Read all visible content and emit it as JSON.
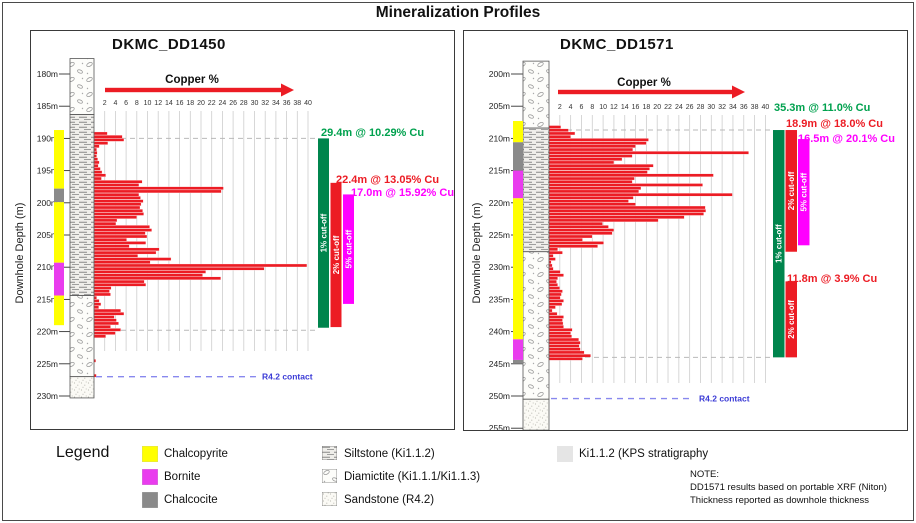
{
  "title": "Mineralization Profiles",
  "colors": {
    "bar_red": "#ec1c24",
    "chalcopyrite": "#ffff00",
    "bornite": "#e93cee",
    "chalcocite": "#8a8a8a",
    "cutoff_green": "#00854d",
    "cutoff_red": "#ec1c24",
    "cutoff_magenta": "#ff00ff",
    "text_green": "#00a14e",
    "text_red": "#ec1c24",
    "text_magenta": "#ff00ff",
    "contact_line": "#8888ee",
    "contact_text": "#3b3bd6",
    "strat_swatch": "#e5e5e5"
  },
  "chart_data": {
    "type": "bar",
    "orientation": "horizontal",
    "description": "Downhole copper grade profiles with lithology and sulphide mineral zones",
    "panels": [
      {
        "hole_id": "DKMC_DD1450",
        "x_axis": {
          "label": "Copper %",
          "min": 0,
          "max": 40,
          "ticks": [
            2,
            4,
            6,
            8,
            10,
            12,
            14,
            16,
            18,
            20,
            22,
            24,
            26,
            28,
            30,
            32,
            34,
            36,
            38,
            40
          ]
        },
        "depth_axis": {
          "label": "Downhole Depth (m)",
          "ticks": [
            "180m",
            "185m",
            "190m",
            "195m",
            "200m",
            "205m",
            "210m",
            "215m",
            "220m",
            "225m",
            "230m"
          ]
        },
        "bars": [
          [
            189,
            2.5
          ],
          [
            189.5,
            5.3
          ],
          [
            190,
            5.6
          ],
          [
            190.5,
            2.6
          ],
          [
            191,
            1
          ],
          [
            191.5,
            0.5
          ],
          [
            192,
            0.6
          ],
          [
            192.5,
            0.5
          ],
          [
            193,
            0.7
          ],
          [
            193.5,
            1
          ],
          [
            194,
            0.8
          ],
          [
            194.5,
            1.2
          ],
          [
            195,
            1.5
          ],
          [
            195.5,
            2.2
          ],
          [
            196,
            1.4
          ],
          [
            196.5,
            9
          ],
          [
            197,
            8.4
          ],
          [
            197.5,
            24.2
          ],
          [
            198,
            23.8
          ],
          [
            198.5,
            8.4
          ],
          [
            199,
            8.7
          ],
          [
            199.5,
            9.2
          ],
          [
            200,
            8.8
          ],
          [
            200.5,
            8.6
          ],
          [
            201,
            9.1
          ],
          [
            201.5,
            9.3
          ],
          [
            202,
            8
          ],
          [
            202.5,
            4.3
          ],
          [
            203,
            4.1
          ],
          [
            203.5,
            10.4
          ],
          [
            204,
            10.8
          ],
          [
            204.5,
            9.6
          ],
          [
            205,
            9.9
          ],
          [
            205.5,
            6.1
          ],
          [
            206,
            9.7
          ],
          [
            206.5,
            6.6
          ],
          [
            207,
            12.2
          ],
          [
            207.5,
            11.6
          ],
          [
            208,
            8.2
          ],
          [
            208.5,
            14.4
          ],
          [
            209,
            10.5
          ],
          [
            209.5,
            39.8
          ],
          [
            210,
            31.8
          ],
          [
            210.5,
            20.9
          ],
          [
            211,
            20.3
          ],
          [
            211.5,
            23.7
          ],
          [
            212,
            9.4
          ],
          [
            212.5,
            9.7
          ],
          [
            213,
            3.2
          ],
          [
            213.5,
            2.9
          ],
          [
            214,
            3.1
          ],
          [
            214.5,
            0.5
          ],
          [
            215,
            1
          ],
          [
            215.5,
            1.3
          ],
          [
            216,
            0.9
          ],
          [
            216.5,
            5
          ],
          [
            217,
            5.6
          ],
          [
            217.5,
            3.8
          ],
          [
            218,
            4.2
          ],
          [
            218.5,
            4.6
          ],
          [
            219,
            3.1
          ],
          [
            219.5,
            5
          ],
          [
            220,
            4
          ],
          [
            220.5,
            2.2
          ],
          [
            224.3,
            0.35
          ],
          [
            226.6,
            0.45
          ]
        ],
        "lithology": [
          {
            "unit": "diamictite",
            "from": 177.6,
            "to": 186.3
          },
          {
            "unit": "siltstone",
            "from": 186.3,
            "to": 214.4
          },
          {
            "unit": "diamictite",
            "from": 214.4,
            "to": 227.0
          },
          {
            "unit": "sandstone",
            "from": 227.0,
            "to": 230.3
          }
        ],
        "minerals": [
          {
            "mineral": "chalcopyrite",
            "from": 188.7,
            "to": 197.8
          },
          {
            "mineral": "chalcocite",
            "from": 197.8,
            "to": 199.9
          },
          {
            "mineral": "chalcopyrite",
            "from": 199.9,
            "to": 209.3
          },
          {
            "mineral": "bornite",
            "from": 209.3,
            "to": 214.4
          },
          {
            "mineral": "chalcopyrite",
            "from": 214.4,
            "to": 219.0
          }
        ],
        "cutoffs": [
          {
            "label": "1% cut-off",
            "color_key": "cutoff_green",
            "from": 190.0,
            "to": 219.4,
            "col": 0
          },
          {
            "label": "2% cut-off",
            "color_key": "cutoff_red",
            "from": 196.9,
            "to": 219.3,
            "col": 1
          },
          {
            "label": "5% cut-off",
            "color_key": "cutoff_magenta",
            "from": 198.7,
            "to": 215.7,
            "col": 2
          }
        ],
        "intercepts": [
          {
            "text": "29.4m @ 10.29% Cu",
            "color_key": "text_green"
          },
          {
            "text": "22.4m @ 13.05% Cu",
            "color_key": "text_red"
          },
          {
            "text": "17.0m @ 15.92% Cu",
            "color_key": "text_magenta"
          }
        ],
        "boundary_depths": [
          190.0,
          219.8
        ],
        "contact": {
          "depth": 227.0,
          "label": "R4.2 contact"
        }
      },
      {
        "hole_id": "DKMC_DD1571",
        "x_axis": {
          "label": "Copper %",
          "min": 0,
          "max": 40,
          "ticks": [
            2,
            4,
            6,
            8,
            10,
            12,
            14,
            16,
            18,
            20,
            22,
            24,
            26,
            28,
            30,
            32,
            34,
            36,
            38,
            40
          ]
        },
        "depth_axis": {
          "label": "Downhole Depth (m)",
          "ticks": [
            "200m",
            "205m",
            "210m",
            "215m",
            "220m",
            "225m",
            "230m",
            "235m",
            "240m",
            "245m",
            "250m",
            "255m"
          ]
        },
        "bars": [
          [
            208,
            2.2
          ],
          [
            208.5,
            3.6
          ],
          [
            209,
            4.8
          ],
          [
            209.5,
            4
          ],
          [
            210,
            18.4
          ],
          [
            210.5,
            18
          ],
          [
            211,
            16
          ],
          [
            211.5,
            15.5
          ],
          [
            212,
            36.9
          ],
          [
            212.5,
            15.4
          ],
          [
            213,
            13.5
          ],
          [
            213.5,
            12
          ],
          [
            214,
            19.3
          ],
          [
            214.5,
            18.6
          ],
          [
            215,
            18.2
          ],
          [
            215.5,
            30.4
          ],
          [
            216,
            15.8
          ],
          [
            216.5,
            15.4
          ],
          [
            217,
            28.4
          ],
          [
            217.5,
            17
          ],
          [
            218,
            16.6
          ],
          [
            218.5,
            33.9
          ],
          [
            219,
            15.6
          ],
          [
            219.5,
            14.7
          ],
          [
            220,
            16
          ],
          [
            220.5,
            28.9
          ],
          [
            221,
            29
          ],
          [
            221.5,
            28.6
          ],
          [
            222,
            25
          ],
          [
            222.5,
            20.2
          ],
          [
            223,
            9.9
          ],
          [
            223.5,
            11
          ],
          [
            224,
            12
          ],
          [
            224.5,
            11.7
          ],
          [
            225,
            8
          ],
          [
            225.5,
            6.2
          ],
          [
            226,
            10.1
          ],
          [
            226.5,
            9
          ],
          [
            227,
            1.6
          ],
          [
            227.5,
            2.5
          ],
          [
            228,
            0.8
          ],
          [
            228.5,
            1.2
          ],
          [
            229,
            0.4
          ],
          [
            229.5,
            0.6
          ],
          [
            230,
            0.8
          ],
          [
            230.5,
            2.1
          ],
          [
            231,
            2.7
          ],
          [
            231.5,
            1.6
          ],
          [
            232,
            1.4
          ],
          [
            232.5,
            1.6
          ],
          [
            233,
            2
          ],
          [
            233.5,
            2.5
          ],
          [
            234,
            2.3
          ],
          [
            234.5,
            2.1
          ],
          [
            235,
            2.7
          ],
          [
            235.5,
            2.4
          ],
          [
            236,
            1.2
          ],
          [
            236.5,
            0.6
          ],
          [
            237,
            1.5
          ],
          [
            237.5,
            2.7
          ],
          [
            238,
            2.5
          ],
          [
            238.5,
            2.6
          ],
          [
            239,
            2.7
          ],
          [
            239.5,
            4.3
          ],
          [
            240,
            4
          ],
          [
            240.5,
            4.2
          ],
          [
            241,
            5.5
          ],
          [
            241.5,
            5.8
          ],
          [
            242,
            5.6
          ],
          [
            242.5,
            5.8
          ],
          [
            243,
            6.5
          ],
          [
            243.5,
            7.7
          ],
          [
            244,
            6.2
          ]
        ],
        "lithology": [
          {
            "unit": "diamictite",
            "from": 198.0,
            "to": 208.4
          },
          {
            "unit": "siltstone",
            "from": 208.4,
            "to": 227.6
          },
          {
            "unit": "diamictite",
            "from": 227.6,
            "to": 250.5
          },
          {
            "unit": "sandstone",
            "from": 250.5,
            "to": 255.3
          }
        ],
        "minerals": [
          {
            "mineral": "chalcopyrite",
            "from": 207.3,
            "to": 210.6
          },
          {
            "mineral": "chalcocite",
            "from": 210.6,
            "to": 215.0
          },
          {
            "mineral": "bornite",
            "from": 215.0,
            "to": 219.3
          },
          {
            "mineral": "chalcopyrite",
            "from": 219.3,
            "to": 241.2
          },
          {
            "mineral": "bornite",
            "from": 241.2,
            "to": 244.4
          },
          {
            "mineral": "chalcocite",
            "from": 244.4,
            "to": 245.0
          }
        ],
        "cutoffs": [
          {
            "label": "1% cut-off",
            "color_key": "cutoff_green",
            "from": 208.7,
            "to": 244.0,
            "col": 0
          },
          {
            "label": "2% cut-off",
            "color_key": "cutoff_red",
            "from": 208.7,
            "to": 227.6,
            "col": 1
          },
          {
            "label": "5% cut-off",
            "color_key": "cutoff_magenta",
            "from": 210.1,
            "to": 226.6,
            "col": 2
          },
          {
            "label": "2% cut-off",
            "color_key": "cutoff_red",
            "from": 232.2,
            "to": 244.0,
            "col": 1
          }
        ],
        "intercepts": [
          {
            "text": "35.3m @ 11.0% Cu",
            "color_key": "text_green"
          },
          {
            "text": "18.9m @ 18.0% Cu",
            "color_key": "text_red"
          },
          {
            "text": "16.5m @ 20.1% Cu",
            "color_key": "text_magenta"
          },
          {
            "text": "11.8m @ 3.9% Cu",
            "color_key": "text_red"
          }
        ],
        "boundary_depths": [
          208.7,
          244.0
        ],
        "contact": {
          "depth": 250.4,
          "label": "R4.2 contact"
        }
      }
    ]
  },
  "legend": {
    "title": "Legend",
    "minerals": [
      {
        "label": "Chalcopyrite",
        "color_key": "chalcopyrite"
      },
      {
        "label": "Bornite",
        "color_key": "bornite"
      },
      {
        "label": "Chalcocite",
        "color_key": "chalcocite"
      }
    ],
    "lithologies": [
      {
        "label": "Siltstone (Ki1.1.2)",
        "pattern": "siltstone"
      },
      {
        "label": "Diamictite (Ki1.1.1/Ki1.1.3)",
        "pattern": "diamictite"
      },
      {
        "label": "Sandstone (R4.2)",
        "pattern": "sandstone"
      }
    ],
    "stratigraphy": {
      "label": "Ki1.1.2 (KPS stratigraphy",
      "color_key": "strat_swatch"
    }
  },
  "note": {
    "heading": "NOTE:",
    "lines": [
      "DD1571 results based on portable XRF (Niton)",
      "Thickness reported as downhole thickness"
    ]
  }
}
